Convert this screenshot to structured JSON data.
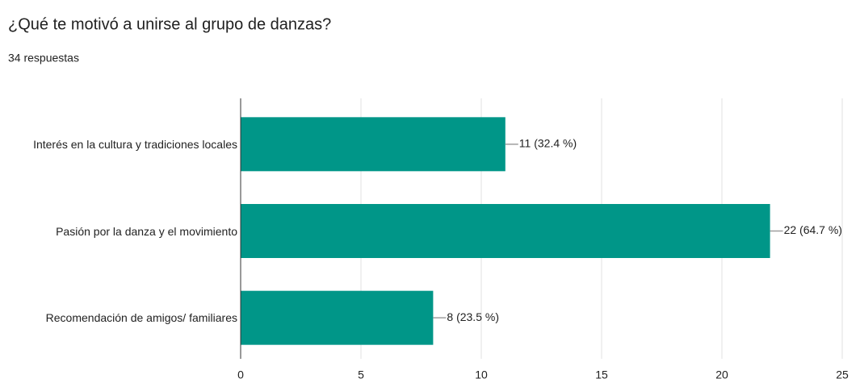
{
  "chart_data": {
    "type": "bar",
    "orientation": "horizontal",
    "title": "¿Qué te motivó a unirse al grupo de danzas?",
    "subtitle": "34 respuestas",
    "categories": [
      "Interés en la cultura y tradiciones locales",
      "Pasión por la danza y el movimiento",
      "Recomendación de amigos/ familiares"
    ],
    "values": [
      11,
      22,
      8
    ],
    "value_labels": [
      "11 (32.4 %)",
      "22 (64.7 %)",
      "8 (23.5 %)"
    ],
    "color": "#009688",
    "xlim": [
      0,
      25
    ],
    "xticks": [
      0,
      5,
      10,
      15,
      20,
      25
    ],
    "grid": true
  }
}
